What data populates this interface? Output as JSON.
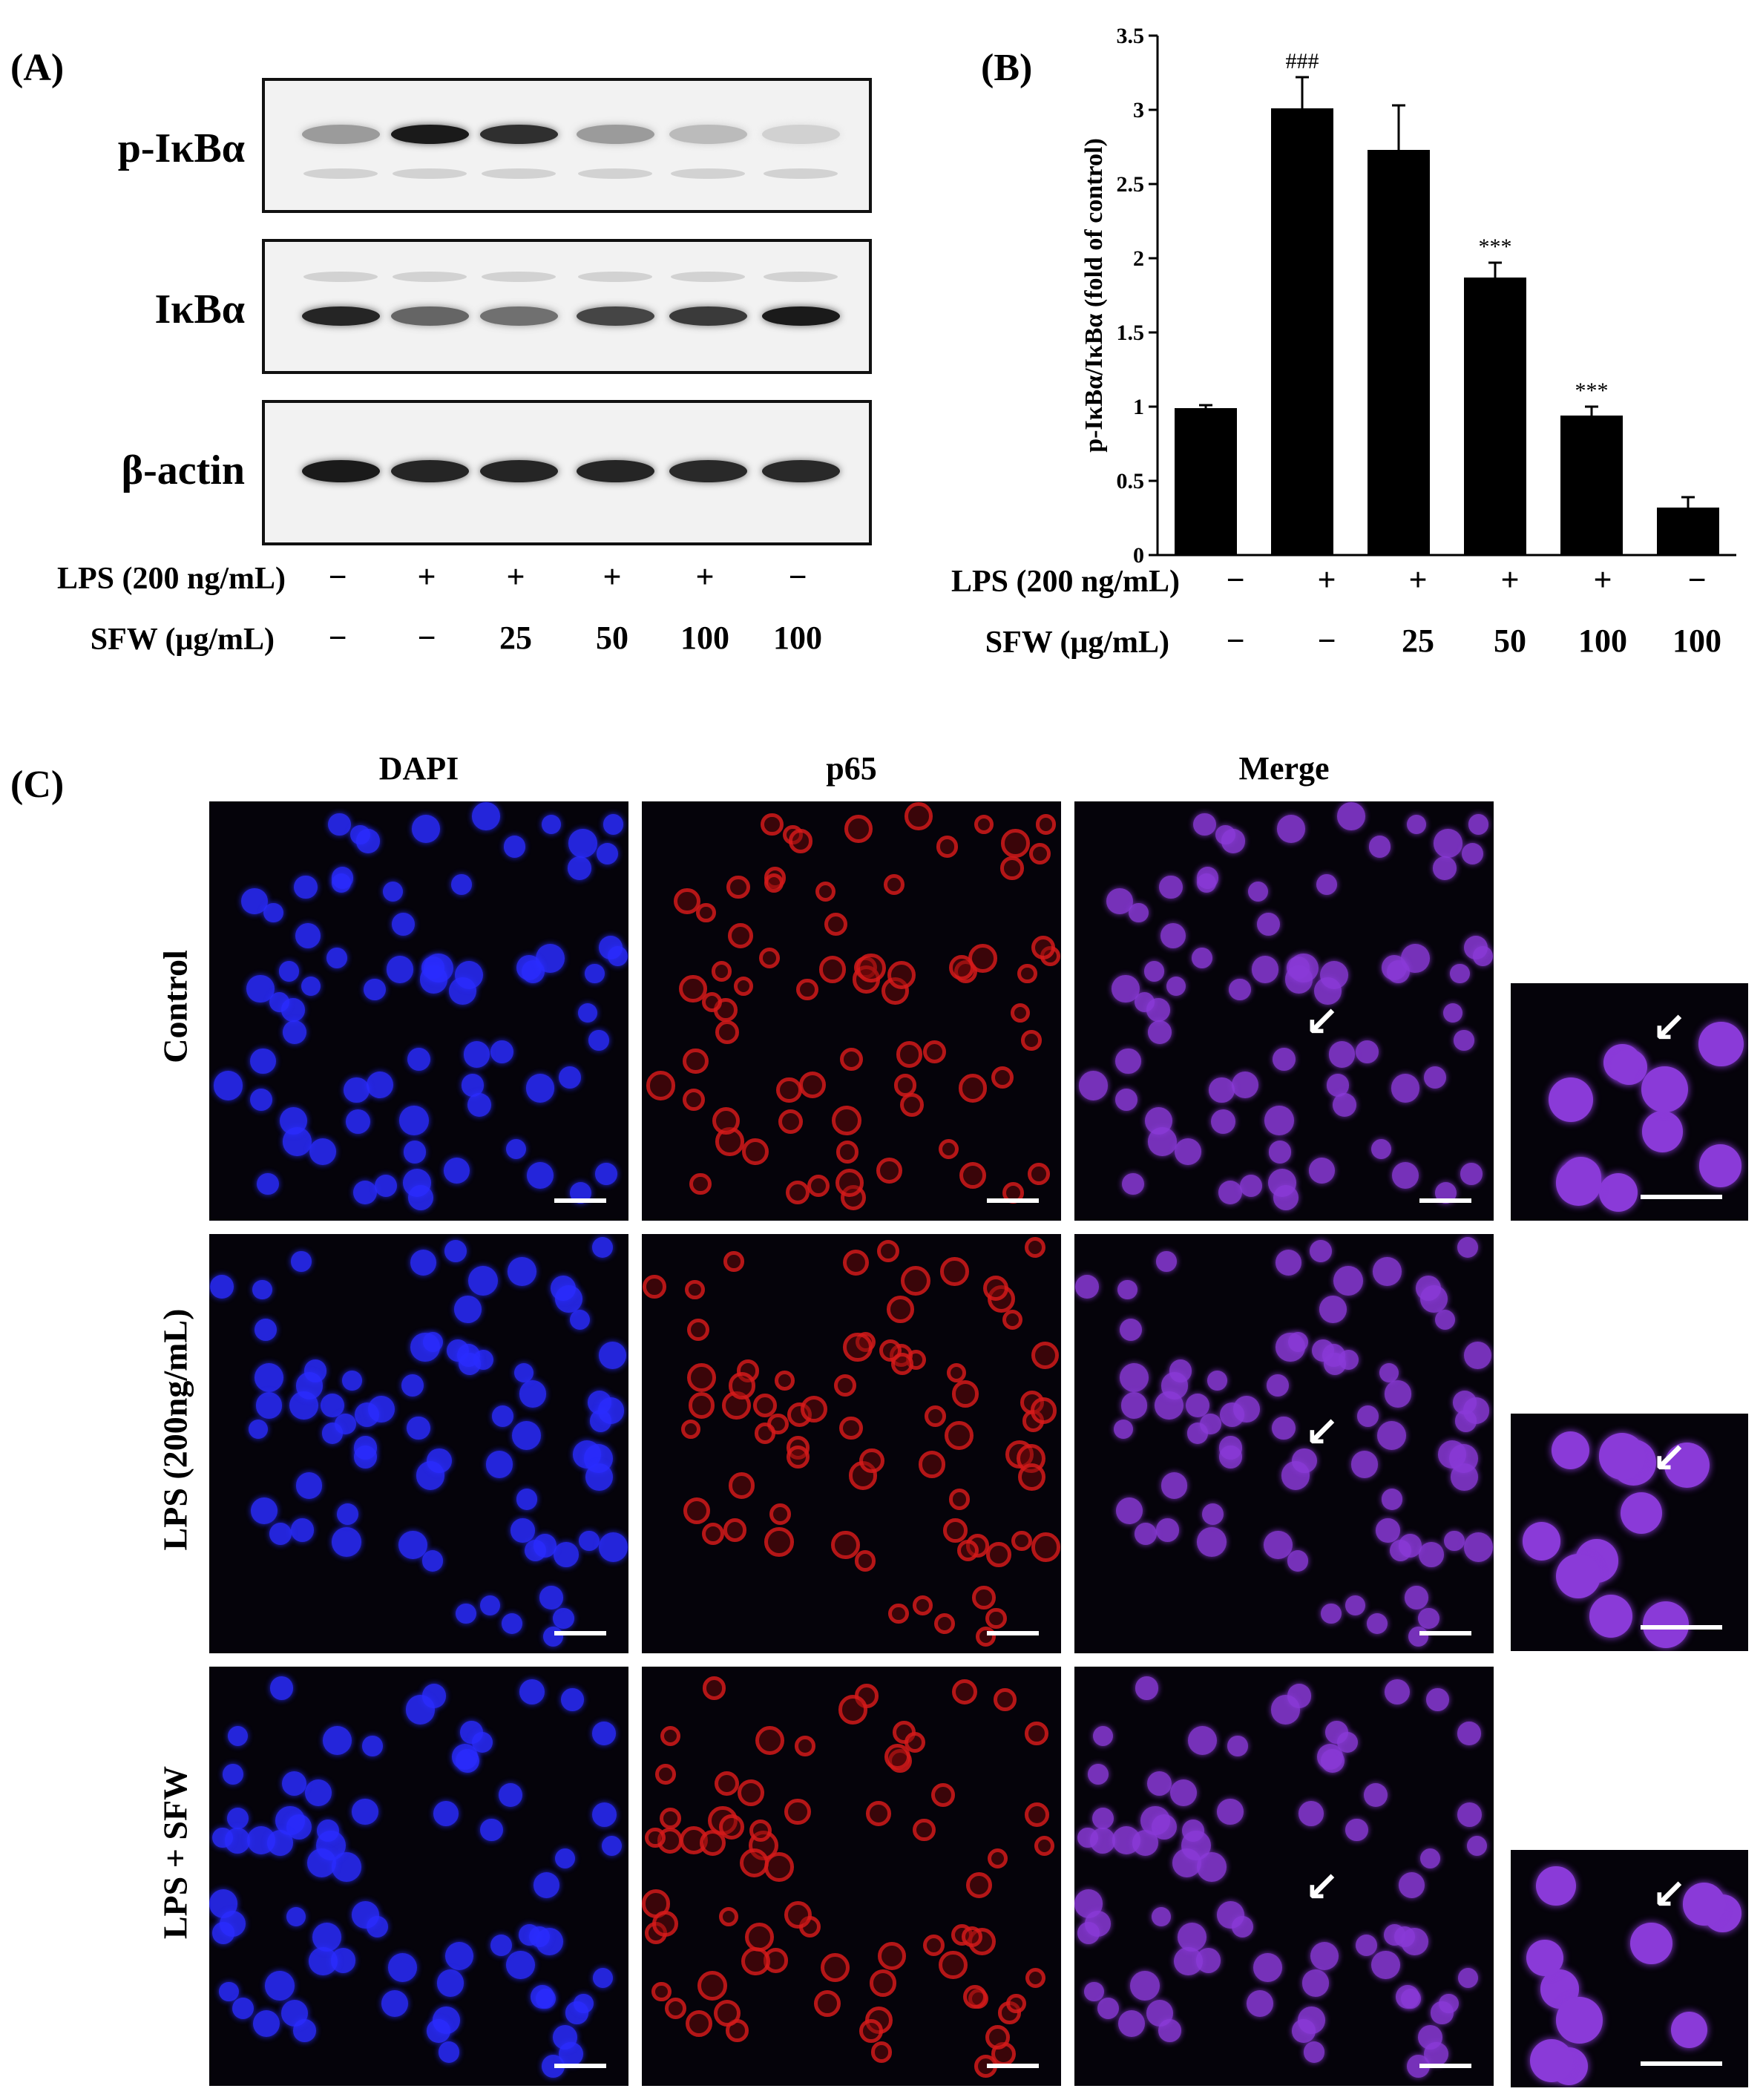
{
  "panel_a": {
    "label": "(A)",
    "blots": [
      {
        "name": "p-IκBα",
        "intensity": [
          0.35,
          0.95,
          0.85,
          0.35,
          0.2,
          0.1
        ]
      },
      {
        "name": "IκBα",
        "intensity": [
          0.9,
          0.6,
          0.55,
          0.75,
          0.8,
          0.95
        ]
      },
      {
        "name": "β-actin",
        "intensity": [
          0.95,
          0.9,
          0.9,
          0.9,
          0.88,
          0.88
        ]
      }
    ],
    "lps_label": "LPS (200 ng/mL)",
    "lps_values": [
      "−",
      "+",
      "+",
      "+",
      "+",
      "−"
    ],
    "sfw_label": "SFW (μg/mL)",
    "sfw_values": [
      "−",
      "−",
      "25",
      "50",
      "100",
      "100"
    ]
  },
  "panel_b": {
    "label": "(B)",
    "lps_label": "LPS (200 ng/mL)",
    "lps_values": [
      "−",
      "+",
      "+",
      "+",
      "+",
      "−"
    ],
    "sfw_label": "SFW (μg/mL)",
    "sfw_values": [
      "−",
      "−",
      "25",
      "50",
      "100",
      "100"
    ]
  },
  "chart_data": {
    "type": "bar",
    "ylabel": "p-IκBα/IκBα (fold of control)",
    "ylim": [
      0,
      3.5
    ],
    "yticks": [
      "0",
      "0.5",
      "1",
      "1.5",
      "2",
      "2.5",
      "3",
      "3.5"
    ],
    "values": [
      0.99,
      3.01,
      2.73,
      1.87,
      0.94,
      0.32
    ],
    "errors": [
      0.02,
      0.21,
      0.3,
      0.1,
      0.06,
      0.07
    ],
    "annotations": [
      "",
      "###",
      "",
      "***",
      "***",
      ""
    ],
    "bar_color": "#000000"
  },
  "panel_c": {
    "label": "(C)",
    "columns": [
      "DAPI",
      "p65",
      "Merge"
    ],
    "rows": [
      "Control",
      "LPS (200ng/mL)",
      "LPS + SFW"
    ],
    "colors": {
      "dapi": "#2a2cff",
      "p65": "#d41a1a",
      "merge": "#8a3ad8"
    }
  }
}
